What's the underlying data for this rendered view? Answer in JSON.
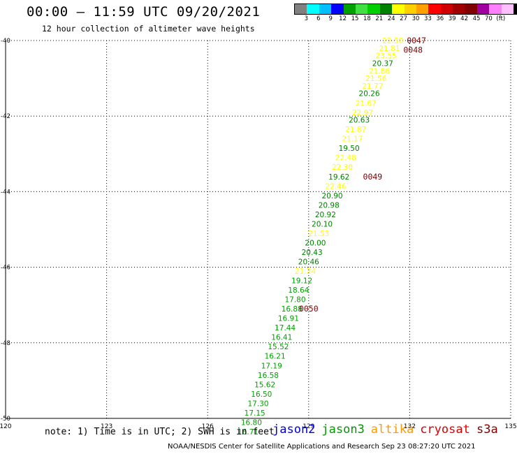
{
  "header": {
    "title": "00:00 – 11:59 UTC 09/20/2021",
    "subtitle": "12 hour collection of altimeter wave heights"
  },
  "color_scale": {
    "colors": [
      "#808080",
      "#00ffff",
      "#00bfff",
      "#0000ff",
      "#00a000",
      "#40e040",
      "#00d000",
      "#008000",
      "#ffff00",
      "#ffd000",
      "#ffa000",
      "#ff0000",
      "#d00000",
      "#a00000",
      "#800000",
      "#a000a0",
      "#ff80ff",
      "#ffc0ff",
      "#000000"
    ],
    "labels": [
      "3",
      "6",
      "9",
      "12",
      "15",
      "18",
      "21",
      "24",
      "27",
      "30",
      "33",
      "36",
      "39",
      "42",
      "45",
      "70",
      "(ft)"
    ]
  },
  "footer": {
    "note": "note: 1) Time is in UTC; 2) SWH is in feet",
    "legend": [
      {
        "name": "jason2",
        "color": "#0000dd"
      },
      {
        "name": "jason3",
        "color": "#009900"
      },
      {
        "name": "altika",
        "color": "#ff9900"
      },
      {
        "name": "cryosat",
        "color": "#dd0000"
      },
      {
        "name": "s3a",
        "color": "#800000"
      }
    ],
    "credit": "NOAA/NESDIS Center for Satellite Applications and Research    Sep 23 08:27:20 UTC 2021"
  },
  "chart_data": {
    "type": "scatter",
    "x_ticks": [
      "120",
      "123",
      "126",
      "129",
      "132",
      "135"
    ],
    "y_ticks": [
      "-40",
      "-42",
      "-44",
      "-46",
      "-48",
      "-50"
    ],
    "xlim": [
      120,
      135
    ],
    "ylim": [
      -50,
      -40
    ],
    "grid": true,
    "points": [
      {
        "lon": 131.5,
        "lat": -40.0,
        "label": "22.50",
        "color": "#ffff00"
      },
      {
        "lon": 131.4,
        "lat": -40.2,
        "label": "21.81",
        "color": "#ffff00"
      },
      {
        "lon": 131.3,
        "lat": -40.4,
        "label": "23.55",
        "color": "#ffff00"
      },
      {
        "lon": 131.2,
        "lat": -40.6,
        "label": "20.37",
        "color": "#008000"
      },
      {
        "lon": 131.1,
        "lat": -40.8,
        "label": "21.86",
        "color": "#ffff00"
      },
      {
        "lon": 131.0,
        "lat": -41.0,
        "label": "21.56",
        "color": "#ffff00"
      },
      {
        "lon": 130.9,
        "lat": -41.2,
        "label": "21.77",
        "color": "#ffff00"
      },
      {
        "lon": 130.8,
        "lat": -41.4,
        "label": "20.26",
        "color": "#008000"
      },
      {
        "lon": 130.7,
        "lat": -41.65,
        "label": "21.67",
        "color": "#ffff00"
      },
      {
        "lon": 130.6,
        "lat": -41.9,
        "label": "22.97",
        "color": "#ffff00"
      },
      {
        "lon": 130.5,
        "lat": -42.1,
        "label": "20.63",
        "color": "#008000"
      },
      {
        "lon": 130.4,
        "lat": -42.35,
        "label": "21.87",
        "color": "#ffff00"
      },
      {
        "lon": 130.3,
        "lat": -42.6,
        "label": "21.17",
        "color": "#ffff00"
      },
      {
        "lon": 130.2,
        "lat": -42.85,
        "label": "19.50",
        "color": "#008000"
      },
      {
        "lon": 130.1,
        "lat": -43.1,
        "label": "22.48",
        "color": "#ffff00"
      },
      {
        "lon": 130.0,
        "lat": -43.35,
        "label": "22.30",
        "color": "#ffff00"
      },
      {
        "lon": 129.9,
        "lat": -43.6,
        "label": "19.62",
        "color": "#008000"
      },
      {
        "lon": 129.8,
        "lat": -43.85,
        "label": "22.46",
        "color": "#ffff00"
      },
      {
        "lon": 129.7,
        "lat": -44.1,
        "label": "20.90",
        "color": "#008000"
      },
      {
        "lon": 129.6,
        "lat": -44.35,
        "label": "20.98",
        "color": "#008000"
      },
      {
        "lon": 129.5,
        "lat": -44.6,
        "label": "20.92",
        "color": "#008000"
      },
      {
        "lon": 129.4,
        "lat": -44.85,
        "label": "20.10",
        "color": "#008000"
      },
      {
        "lon": 129.3,
        "lat": -45.1,
        "label": "21.53",
        "color": "#ffff00"
      },
      {
        "lon": 129.2,
        "lat": -45.35,
        "label": "20.00",
        "color": "#008000"
      },
      {
        "lon": 129.1,
        "lat": -45.6,
        "label": "20.43",
        "color": "#008000"
      },
      {
        "lon": 129.0,
        "lat": -45.85,
        "label": "20.46",
        "color": "#008000"
      },
      {
        "lon": 128.9,
        "lat": -46.1,
        "label": "21.24",
        "color": "#ffff00"
      },
      {
        "lon": 128.8,
        "lat": -46.35,
        "label": "19.12",
        "color": "#00a000"
      },
      {
        "lon": 128.7,
        "lat": -46.6,
        "label": "18.64",
        "color": "#00a000"
      },
      {
        "lon": 128.6,
        "lat": -46.85,
        "label": "17.80",
        "color": "#00a000"
      },
      {
        "lon": 128.5,
        "lat": -47.1,
        "label": "16.88",
        "color": "#00a000"
      },
      {
        "lon": 128.4,
        "lat": -47.35,
        "label": "16.91",
        "color": "#00a000"
      },
      {
        "lon": 128.3,
        "lat": -47.6,
        "label": "17.44",
        "color": "#00a000"
      },
      {
        "lon": 128.2,
        "lat": -47.85,
        "label": "16.41",
        "color": "#00a000"
      },
      {
        "lon": 128.1,
        "lat": -48.1,
        "label": "15.52",
        "color": "#00a000"
      },
      {
        "lon": 128.0,
        "lat": -48.35,
        "label": "16.21",
        "color": "#00a000"
      },
      {
        "lon": 127.9,
        "lat": -48.6,
        "label": "17.19",
        "color": "#00a000"
      },
      {
        "lon": 127.8,
        "lat": -48.85,
        "label": "16.58",
        "color": "#00a000"
      },
      {
        "lon": 127.7,
        "lat": -49.1,
        "label": "15.62",
        "color": "#00a000"
      },
      {
        "lon": 127.6,
        "lat": -49.35,
        "label": "16.50",
        "color": "#00a000"
      },
      {
        "lon": 127.5,
        "lat": -49.6,
        "label": "17.30",
        "color": "#00a000"
      },
      {
        "lon": 127.4,
        "lat": -49.85,
        "label": "17.15",
        "color": "#00a000"
      },
      {
        "lon": 127.3,
        "lat": -50.1,
        "label": "16.80",
        "color": "#00a000"
      },
      {
        "lon": 127.2,
        "lat": -50.35,
        "label": "16.71",
        "color": "#00a000"
      }
    ],
    "time_labels": [
      {
        "lon": 132.2,
        "lat": -40.0,
        "label": "0047",
        "color": "#800000"
      },
      {
        "lon": 132.1,
        "lat": -40.25,
        "label": "0048",
        "color": "#800000"
      },
      {
        "lon": 130.9,
        "lat": -43.6,
        "label": "0049",
        "color": "#800000"
      },
      {
        "lon": 129.0,
        "lat": -47.1,
        "label": "0050",
        "color": "#800000"
      }
    ]
  }
}
